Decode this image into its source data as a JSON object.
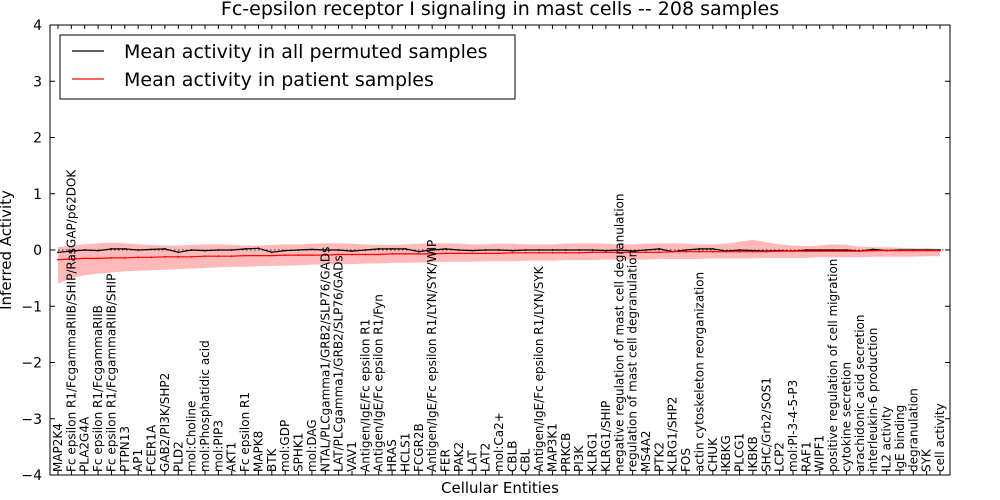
{
  "chart_data": {
    "type": "line",
    "title": "Fc-epsilon receptor I signaling in mast cells -- 208 samples",
    "xlabel": "Cellular Entities",
    "ylabel": "Inferred Activity",
    "ylim": [
      -4,
      4
    ],
    "yticks": [
      -4,
      -3,
      -2,
      -1,
      0,
      1,
      2,
      3,
      4
    ],
    "grid": false,
    "legend_position": "top-left",
    "categories": [
      "MAP2K4",
      "Fc epsilon R1/FcgammaRIIB/SHIP/RasGAP/p62DOK",
      "PLA2G4A",
      "Fc epsilon R1/FcgammaRIIB",
      "Fc epsilon R1/FcgammaRIIB/SHIP",
      "PTPN13",
      "AP1",
      "FCER1A",
      "GAB2/PI3K/SHP2",
      "PLD2",
      "mol:Choline",
      "mol:Phosphatidic acid",
      "mol:PIP3",
      "AKT1",
      "Fc epsilon R1",
      "MAPK8",
      "BTK",
      "mol:GDP",
      "SPHK1",
      "mol:DAG",
      "NTAL/PLCgamma1/GRB2/SLP76/GADs",
      "LAT/PLCgamma1/GRB2/SLP76/GADs",
      "VAV1",
      "Antigen/IgE/Fc epsilon R1",
      "Antigen/IgE/Fc epsilon R1/Fyn",
      "HRAS",
      "HCLS1",
      "FCGR2B",
      "Antigen/IgE/Fc epsilon R1/LYN/SYK/WIP",
      "FER",
      "PAK2",
      "LAT",
      "LAT2",
      "mol:Ca2+",
      "CBLB",
      "CBL",
      "Antigen/IgE/Fc epsilon R1/LYN/SYK",
      "MAP3K1",
      "PRKCB",
      "PI3K",
      "KLRG1",
      "KLRG1/SHIP",
      "negative regulation of mast cell degranulation",
      "regulation of mast cell degranulation",
      "MS4A2",
      "PTK2",
      "KLRG1/SHP2",
      "FOS",
      "actin cytoskeleton reorganization",
      "CHUK",
      "IKBKG",
      "PLCG1",
      "IKBKB",
      "SHC/Grb2/SOS1",
      "LCP2",
      "mol:PI-3-4-5-P3",
      "RAF1",
      "WIPF1",
      "positive regulation of cell migration",
      "cytokine secretion",
      "arachidonic acid secretion",
      "interleukin-6 production",
      "IL2 activity",
      "IgE binding",
      "degranulation",
      "SYK",
      "cell activity"
    ],
    "series": [
      {
        "name": "Mean activity in all permuted samples",
        "color": "#000000",
        "values": [
          -0.04,
          -0.02,
          0.0,
          -0.01,
          0.02,
          0.02,
          0.0,
          0.01,
          0.02,
          -0.04,
          0.0,
          -0.01,
          0.0,
          0.0,
          0.02,
          0.03,
          -0.04,
          -0.01,
          0.0,
          0.01,
          0.0,
          0.0,
          -0.02,
          0.0,
          0.02,
          0.02,
          0.02,
          -0.03,
          0.0,
          0.02,
          0.0,
          -0.01,
          0.0,
          0.0,
          -0.01,
          0.0,
          0.0,
          0.0,
          0.0,
          0.0,
          0.0,
          -0.01,
          0.0,
          -0.02,
          0.0,
          0.02,
          -0.03,
          0.0,
          0.02,
          0.02,
          -0.02,
          0.0,
          -0.01,
          -0.02,
          -0.01,
          -0.02,
          0.0,
          0.0,
          0.0,
          0.0,
          -0.02,
          0.01,
          -0.01,
          0.0,
          0.0,
          0.0,
          0.0
        ]
      },
      {
        "name": "Mean activity in patient samples",
        "color": "#ff0000",
        "band_color": "#ff8080",
        "values": [
          -0.17,
          -0.16,
          -0.15,
          -0.15,
          -0.14,
          -0.14,
          -0.13,
          -0.13,
          -0.12,
          -0.12,
          -0.12,
          -0.11,
          -0.11,
          -0.11,
          -0.1,
          -0.1,
          -0.1,
          -0.09,
          -0.09,
          -0.09,
          -0.09,
          -0.08,
          -0.08,
          -0.08,
          -0.08,
          -0.07,
          -0.07,
          -0.07,
          -0.07,
          -0.06,
          -0.06,
          -0.06,
          -0.06,
          -0.06,
          -0.05,
          -0.05,
          -0.05,
          -0.05,
          -0.05,
          -0.05,
          -0.04,
          -0.04,
          -0.04,
          -0.04,
          -0.04,
          -0.04,
          -0.03,
          -0.03,
          -0.03,
          -0.03,
          -0.03,
          -0.03,
          -0.03,
          -0.03,
          -0.02,
          -0.02,
          -0.02,
          -0.02,
          -0.02,
          -0.02,
          -0.02,
          -0.01,
          -0.01,
          -0.01,
          -0.01,
          -0.01,
          -0.01
        ],
        "lower": [
          -0.6,
          -0.5,
          -0.45,
          -0.42,
          -0.4,
          -0.38,
          -0.37,
          -0.36,
          -0.35,
          -0.34,
          -0.33,
          -0.32,
          -0.31,
          -0.3,
          -0.3,
          -0.29,
          -0.28,
          -0.28,
          -0.27,
          -0.26,
          -0.26,
          -0.25,
          -0.25,
          -0.24,
          -0.24,
          -0.23,
          -0.23,
          -0.22,
          -0.22,
          -0.21,
          -0.21,
          -0.21,
          -0.2,
          -0.2,
          -0.2,
          -0.19,
          -0.19,
          -0.19,
          -0.18,
          -0.18,
          -0.18,
          -0.17,
          -0.17,
          -0.17,
          -0.17,
          -0.16,
          -0.16,
          -0.16,
          -0.16,
          -0.15,
          -0.15,
          -0.15,
          -0.15,
          -0.14,
          -0.14,
          -0.14,
          -0.14,
          -0.13,
          -0.13,
          -0.13,
          -0.13,
          -0.12,
          -0.12,
          -0.12,
          -0.12,
          -0.11,
          -0.11
        ],
        "upper": [
          0.05,
          0.08,
          0.1,
          0.12,
          0.13,
          0.12,
          0.1,
          0.09,
          0.08,
          0.08,
          0.09,
          0.1,
          0.1,
          0.09,
          0.08,
          0.08,
          0.09,
          0.1,
          0.1,
          0.11,
          0.12,
          0.12,
          0.11,
          0.1,
          0.09,
          0.09,
          0.1,
          0.11,
          0.12,
          0.12,
          0.11,
          0.1,
          0.1,
          0.11,
          0.11,
          0.1,
          0.1,
          0.1,
          0.11,
          0.12,
          0.12,
          0.11,
          0.1,
          0.1,
          0.11,
          0.12,
          0.12,
          0.11,
          0.1,
          0.1,
          0.11,
          0.15,
          0.18,
          0.14,
          0.1,
          0.08,
          0.07,
          0.08,
          0.1,
          0.09,
          0.06,
          0.05,
          0.05,
          0.04,
          0.03,
          0.03,
          0.02
        ]
      }
    ]
  }
}
